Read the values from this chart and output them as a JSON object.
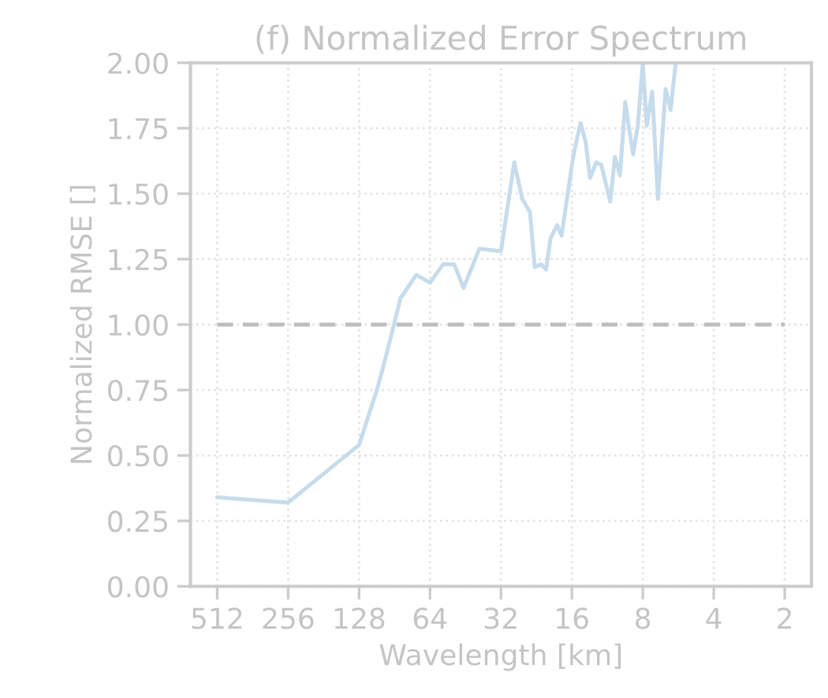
{
  "chart_data": {
    "type": "line",
    "title": "(f) Normalized Error Spectrum",
    "xlabel": "Wavelength [km]",
    "ylabel": "Normalized RMSE []",
    "log": "x",
    "xlim": [
      665,
      1.54
    ],
    "xticks": [
      512,
      256,
      128,
      64,
      32,
      16,
      8,
      4,
      2
    ],
    "ylim": [
      0,
      2
    ],
    "yticks": [
      {
        "value": 0,
        "label": "0.00"
      },
      {
        "value": 0.25,
        "label": "0.25"
      },
      {
        "value": 0.5,
        "label": "0.50"
      },
      {
        "value": 0.75,
        "label": "0.75"
      },
      {
        "value": 1,
        "label": "1.00"
      },
      {
        "value": 1.25,
        "label": "1.25"
      },
      {
        "value": 1.5,
        "label": "1.50"
      },
      {
        "value": 1.75,
        "label": "1.75"
      },
      {
        "value": 2,
        "label": "2.00"
      }
    ],
    "grid": true,
    "line_style": "solid",
    "series": [
      {
        "color": "#c6dcec",
        "x": [
          512,
          256,
          128,
          107.6,
          99.6,
          85.4,
          73.2,
          64,
          56.3,
          50.5,
          46.1,
          39.5,
          32,
          28.1,
          26.0,
          24.1,
          23.0,
          21.6,
          20.6,
          19.7,
          18.5,
          17.7,
          15.8,
          15.4,
          14.7,
          14.0,
          13.4,
          12.6,
          12.0,
          11.0,
          10.5,
          10.0,
          9.5,
          8.8,
          8.4,
          8.0,
          7.7,
          7.3,
          6.9,
          6.4,
          6.1,
          5.8
        ],
        "values": [
          0.34,
          0.32,
          0.54,
          0.75,
          0.86,
          1.1,
          1.19,
          1.16,
          1.23,
          1.23,
          1.14,
          1.29,
          1.28,
          1.62,
          1.48,
          1.43,
          1.22,
          1.23,
          1.21,
          1.33,
          1.38,
          1.34,
          1.64,
          1.69,
          1.77,
          1.7,
          1.56,
          1.62,
          1.61,
          1.47,
          1.64,
          1.57,
          1.85,
          1.65,
          1.76,
          2.0,
          1.76,
          1.89,
          1.48,
          1.9,
          1.82,
          2.0
        ]
      },
      {
        "type": "line",
        "color": "#bdbdbd",
        "line_style": "dashed",
        "x": [
          512,
          2
        ],
        "values": [
          1,
          1
        ]
      }
    ]
  }
}
